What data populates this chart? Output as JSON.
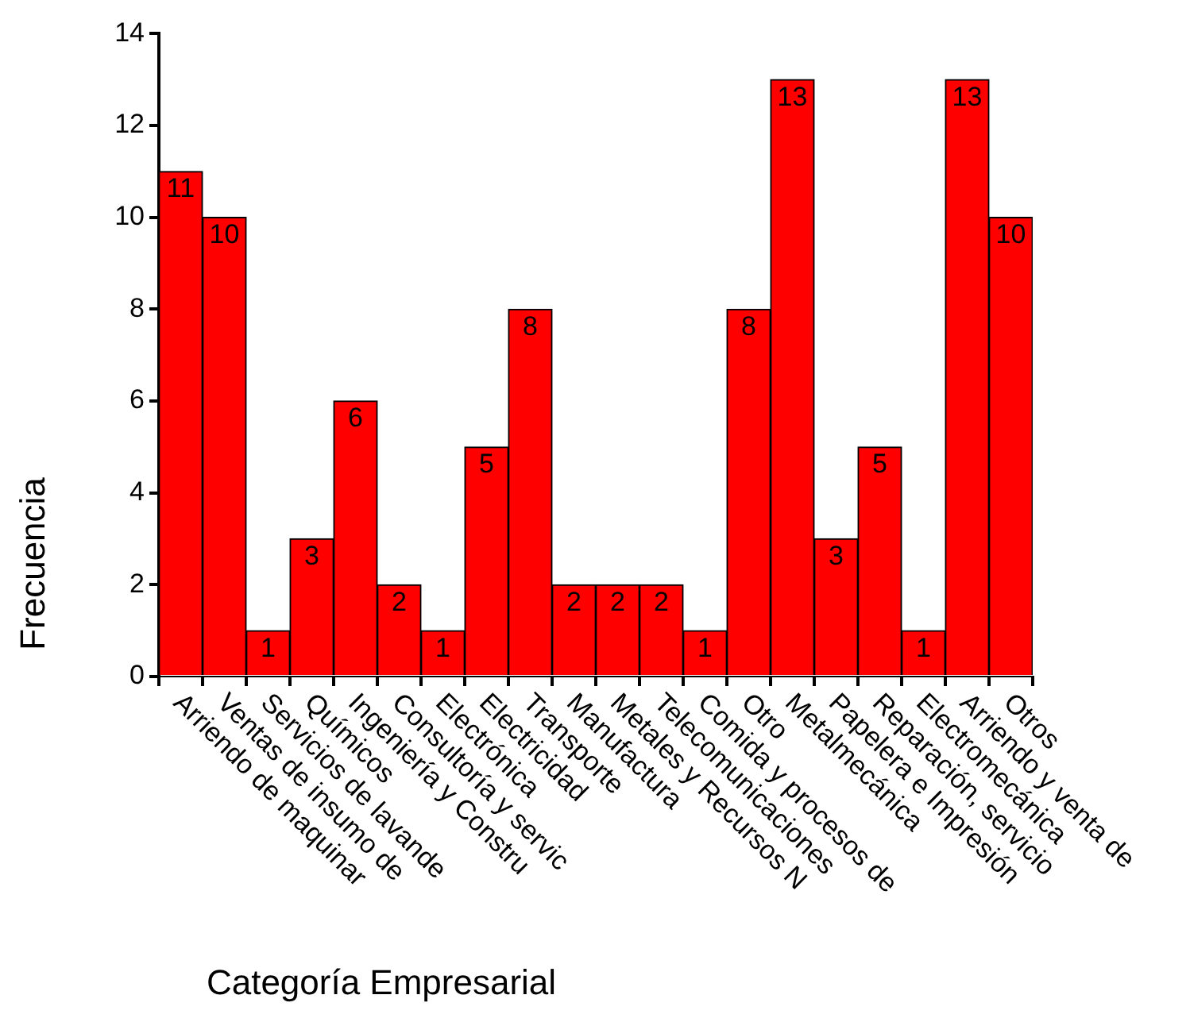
{
  "chart_data": {
    "type": "bar",
    "xlabel": "Categoría Empresarial",
    "ylabel": "Frecuencia",
    "categories": [
      "Arriendo de maquinar",
      "Ventas de insumo de",
      "Servicios de lavande",
      "Químicos",
      "Ingeniería y Constru",
      "Consultoría y servic",
      "Electrónica",
      "Electricidad",
      "Transporte",
      "Manufactura",
      "Metales y Recursos N",
      "Telecomunicaciones",
      "Comida y procesos de",
      "Otro",
      "Metalmecánica",
      "Papelera e Impresión",
      "Reparación, servicio",
      "Electromecánica",
      "Arriendo y venta de",
      "Otros"
    ],
    "values": [
      11,
      10,
      1,
      3,
      6,
      2,
      1,
      5,
      8,
      2,
      2,
      2,
      1,
      8,
      13,
      3,
      5,
      1,
      13,
      10
    ],
    "color": "#ff0000",
    "ylim": [
      0,
      14
    ],
    "yticks": [
      0,
      2,
      4,
      6,
      8,
      10,
      12,
      14
    ],
    "grid": false,
    "data_labels": true
  }
}
